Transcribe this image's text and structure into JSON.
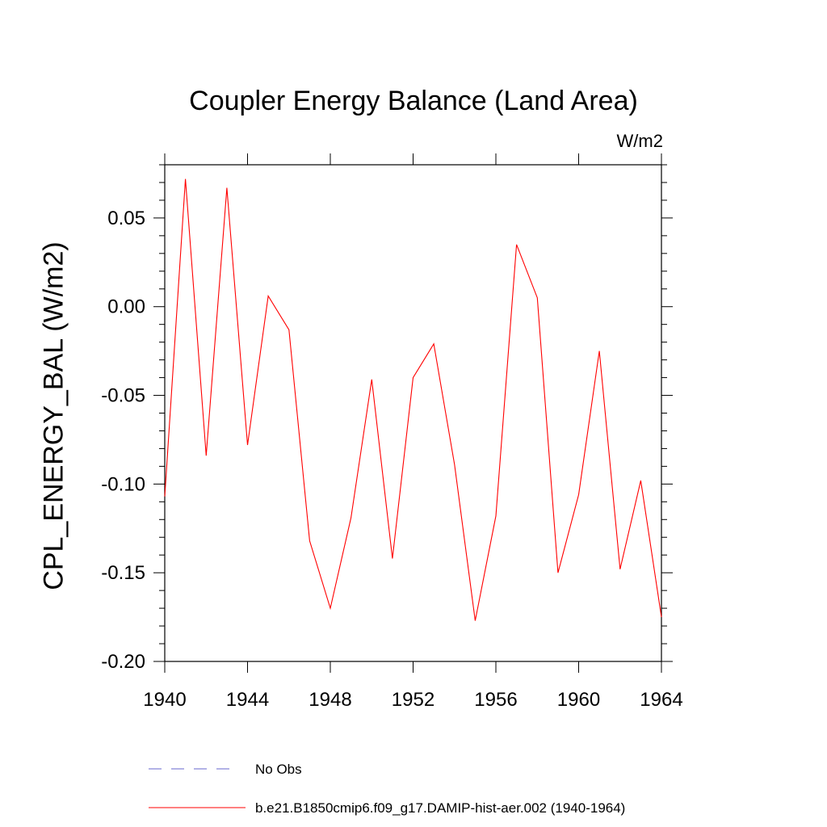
{
  "chart_data": {
    "type": "line",
    "title": "Coupler Energy Balance (Land Area)",
    "units_label": "W/m2",
    "ylabel": "CPL_ENERGY_BAL  (W/m2)",
    "xlabel": "",
    "xlim": [
      1940,
      1964
    ],
    "ylim": [
      -0.2,
      0.08
    ],
    "x_ticks": [
      "1940",
      "1944",
      "1948",
      "1952",
      "1956",
      "1960",
      "1964"
    ],
    "y_ticks": [
      "0.05",
      "0.00",
      "-0.05",
      "-0.10",
      "-0.15",
      "-0.20"
    ],
    "legend": [
      {
        "name": "No Obs",
        "color": "#6666cc",
        "style": "dashed"
      },
      {
        "name": "b.e21.B1850cmip6.f09_g17.DAMIP-hist-aer.002 (1940-1964)",
        "color": "#ff0000",
        "style": "solid"
      }
    ],
    "series": [
      {
        "name": "b.e21.B1850cmip6.f09_g17.DAMIP-hist-aer.002 (1940-1964)",
        "color": "#ff0000",
        "x": [
          1940,
          1941,
          1942,
          1943,
          1944,
          1945,
          1946,
          1947,
          1948,
          1949,
          1950,
          1951,
          1952,
          1953,
          1954,
          1955,
          1956,
          1957,
          1958,
          1959,
          1960,
          1961,
          1962,
          1963,
          1964
        ],
        "y": [
          -0.107,
          0.072,
          -0.084,
          0.067,
          -0.078,
          0.006,
          -0.013,
          -0.132,
          -0.17,
          -0.119,
          -0.041,
          -0.142,
          -0.04,
          -0.021,
          -0.089,
          -0.177,
          -0.118,
          0.035,
          0.005,
          -0.15,
          -0.106,
          -0.025,
          -0.148,
          -0.098,
          -0.175
        ]
      }
    ]
  }
}
